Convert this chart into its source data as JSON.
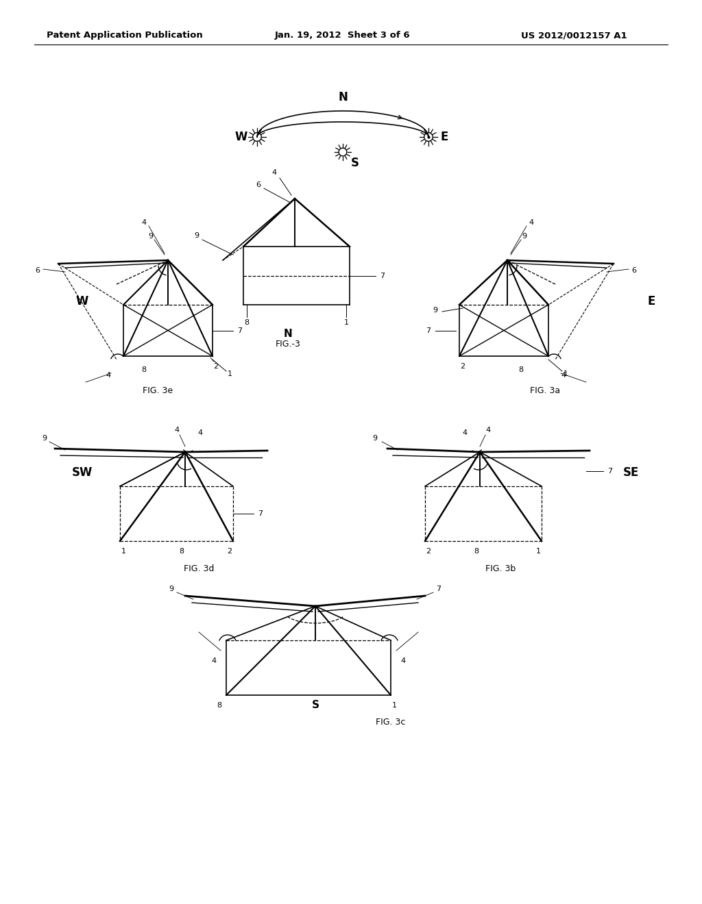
{
  "title_left": "Patent Application Publication",
  "title_center": "Jan. 19, 2012  Sheet 3 of 6",
  "title_right": "US 2012/0012157 A1",
  "bg": "#ffffff"
}
